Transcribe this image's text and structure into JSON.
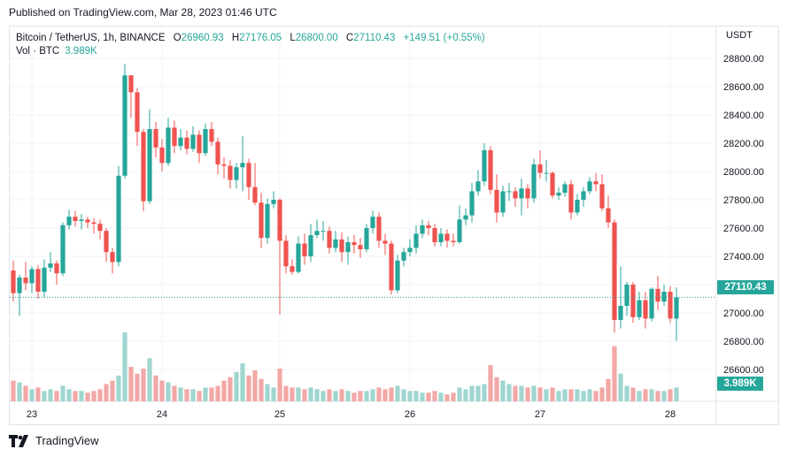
{
  "header": {
    "published": "Published on TradingView.com, Mar 28, 2023 01:46 UTC"
  },
  "legend": {
    "symbol": "Bitcoin / TetherUS, 1h, BINANCE",
    "open_label": "O",
    "open": "26960.93",
    "high_label": "H",
    "high": "27176.05",
    "low_label": "L",
    "low": "26800.00",
    "close_label": "C",
    "close": "27110.43",
    "change": "+149.51 (+0.55%)",
    "volume_label": "Vol · BTC",
    "volume": "3.989K"
  },
  "axis": {
    "currency": "USDT",
    "last_price_tag": "27110.43",
    "volume_tag": "3.989K"
  },
  "footer": {
    "brand": "TradingView"
  },
  "colors": {
    "up": "#26a69a",
    "down": "#ef5350",
    "vol_up": "#9fd6cf",
    "vol_down": "#f2a8a6",
    "grid": "#f0f3fa",
    "text": "#131722"
  },
  "chart_data": {
    "type": "candlestick",
    "title": "Bitcoin / TetherUS, 1h, BINANCE",
    "ylim": [
      26400,
      28900
    ],
    "y_ticks": [
      26600,
      26800,
      27000,
      27200,
      27400,
      27600,
      27800,
      28000,
      28200,
      28400,
      28600,
      28800
    ],
    "y_tick_labels": [
      "26600.00",
      "26800.00",
      "27000.00",
      "27200.00",
      "27400.00",
      "27600.00",
      "27800.00",
      "28000.00",
      "28200.00",
      "28400.00",
      "28600.00",
      "28800.00"
    ],
    "x_ticks": [
      {
        "label": "23",
        "index": 3
      },
      {
        "label": "24",
        "index": 24
      },
      {
        "label": "25",
        "index": 43
      },
      {
        "label": "26",
        "index": 64
      },
      {
        "label": "27",
        "index": 85
      },
      {
        "label": "28",
        "index": 106
      }
    ],
    "last_price": 27110.43,
    "grid": true,
    "candles": [
      [
        27300,
        27140,
        27370,
        27080,
        1.2
      ],
      [
        27140,
        27250,
        27270,
        26980,
        1.1
      ],
      [
        27250,
        27210,
        27360,
        27160,
        0.9
      ],
      [
        27210,
        27310,
        27330,
        27140,
        0.7
      ],
      [
        27310,
        27150,
        27340,
        27100,
        0.8
      ],
      [
        27150,
        27320,
        27380,
        27110,
        0.6
      ],
      [
        27320,
        27350,
        27430,
        27290,
        0.7
      ],
      [
        27350,
        27280,
        27370,
        27200,
        0.6
      ],
      [
        27280,
        27620,
        27640,
        27260,
        0.9
      ],
      [
        27620,
        27680,
        27730,
        27590,
        0.7
      ],
      [
        27680,
        27650,
        27720,
        27610,
        0.6
      ],
      [
        27650,
        27660,
        27700,
        27590,
        0.6
      ],
      [
        27660,
        27640,
        27680,
        27600,
        0.5
      ],
      [
        27640,
        27630,
        27670,
        27560,
        0.6
      ],
      [
        27630,
        27580,
        27660,
        27520,
        0.7
      ],
      [
        27580,
        27430,
        27600,
        27360,
        1.0
      ],
      [
        27430,
        27360,
        27460,
        27280,
        1.2
      ],
      [
        27360,
        27970,
        28040,
        27330,
        1.5
      ],
      [
        27970,
        28680,
        28760,
        27950,
        4.0
      ],
      [
        28680,
        28560,
        28680,
        28380,
        2.0
      ],
      [
        28560,
        28280,
        28590,
        28180,
        1.6
      ],
      [
        28280,
        27790,
        28300,
        27720,
        1.9
      ],
      [
        27790,
        28300,
        28440,
        27770,
        2.5
      ],
      [
        28300,
        28170,
        28350,
        28100,
        1.5
      ],
      [
        28170,
        28060,
        28230,
        28000,
        1.2
      ],
      [
        28060,
        28310,
        28380,
        28040,
        1.1
      ],
      [
        28310,
        28180,
        28360,
        28130,
        0.9
      ],
      [
        28180,
        28240,
        28300,
        28150,
        0.8
      ],
      [
        28240,
        28160,
        28290,
        28120,
        0.7
      ],
      [
        28160,
        28260,
        28320,
        28140,
        0.7
      ],
      [
        28260,
        28130,
        28290,
        28060,
        0.6
      ],
      [
        28130,
        28300,
        28340,
        28110,
        0.8
      ],
      [
        28300,
        28210,
        28350,
        28180,
        0.8
      ],
      [
        28210,
        28050,
        28240,
        27980,
        0.9
      ],
      [
        28050,
        28040,
        28100,
        27950,
        1.2
      ],
      [
        28040,
        27940,
        28080,
        27880,
        1.4
      ],
      [
        27940,
        28030,
        28060,
        27880,
        1.7
      ],
      [
        28030,
        28060,
        28250,
        27860,
        2.2
      ],
      [
        28060,
        27890,
        28090,
        27800,
        1.5
      ],
      [
        27890,
        27780,
        28060,
        27760,
        1.8
      ],
      [
        27780,
        27530,
        27850,
        27460,
        1.3
      ],
      [
        27530,
        27770,
        27810,
        27490,
        1.0
      ],
      [
        27770,
        27800,
        27860,
        27740,
        0.8
      ],
      [
        27800,
        27510,
        27810,
        26990,
        1.9
      ],
      [
        27510,
        27330,
        27550,
        27280,
        0.9
      ],
      [
        27330,
        27290,
        27380,
        27270,
        0.8
      ],
      [
        27290,
        27490,
        27540,
        27280,
        0.8
      ],
      [
        27490,
        27400,
        27560,
        27340,
        0.7
      ],
      [
        27400,
        27550,
        27630,
        27360,
        0.8
      ],
      [
        27550,
        27580,
        27660,
        27530,
        0.7
      ],
      [
        27580,
        27580,
        27650,
        27510,
        0.6
      ],
      [
        27580,
        27460,
        27610,
        27420,
        0.7
      ],
      [
        27460,
        27520,
        27580,
        27430,
        0.6
      ],
      [
        27520,
        27430,
        27570,
        27360,
        0.7
      ],
      [
        27430,
        27500,
        27540,
        27340,
        0.6
      ],
      [
        27500,
        27480,
        27550,
        27420,
        0.5
      ],
      [
        27480,
        27450,
        27530,
        27390,
        0.6
      ],
      [
        27450,
        27600,
        27630,
        27430,
        0.6
      ],
      [
        27600,
        27680,
        27720,
        27560,
        0.7
      ],
      [
        27680,
        27510,
        27710,
        27460,
        0.8
      ],
      [
        27510,
        27490,
        27560,
        27410,
        0.7
      ],
      [
        27490,
        27160,
        27510,
        27130,
        0.8
      ],
      [
        27160,
        27370,
        27410,
        27140,
        0.9
      ],
      [
        27370,
        27430,
        27460,
        27330,
        0.7
      ],
      [
        27430,
        27460,
        27520,
        27400,
        0.6
      ],
      [
        27460,
        27560,
        27620,
        27420,
        0.6
      ],
      [
        27560,
        27620,
        27660,
        27530,
        0.5
      ],
      [
        27620,
        27600,
        27650,
        27550,
        0.5
      ],
      [
        27600,
        27500,
        27630,
        27470,
        0.6
      ],
      [
        27500,
        27560,
        27600,
        27470,
        0.5
      ],
      [
        27560,
        27510,
        27590,
        27460,
        0.4
      ],
      [
        27510,
        27500,
        27560,
        27470,
        0.5
      ],
      [
        27500,
        27660,
        27760,
        27490,
        0.8
      ],
      [
        27660,
        27690,
        27740,
        27620,
        0.7
      ],
      [
        27690,
        27860,
        27920,
        27640,
        0.9
      ],
      [
        27860,
        27930,
        28010,
        27830,
        0.9
      ],
      [
        27930,
        28150,
        28200,
        27900,
        1.0
      ],
      [
        28150,
        27870,
        28180,
        27840,
        2.1
      ],
      [
        27870,
        27710,
        27980,
        27640,
        1.4
      ],
      [
        27710,
        27860,
        27900,
        27680,
        1.2
      ],
      [
        27860,
        27860,
        27920,
        27790,
        1.0
      ],
      [
        27860,
        27810,
        27890,
        27750,
        0.9
      ],
      [
        27810,
        27880,
        27950,
        27690,
        0.9
      ],
      [
        27880,
        27810,
        27910,
        27740,
        0.8
      ],
      [
        27810,
        28050,
        28090,
        27780,
        0.9
      ],
      [
        28050,
        27990,
        28150,
        27950,
        0.8
      ],
      [
        27990,
        27990,
        28080,
        27930,
        0.7
      ],
      [
        27990,
        27830,
        28000,
        27810,
        0.8
      ],
      [
        27830,
        27850,
        27890,
        27800,
        0.6
      ],
      [
        27850,
        27910,
        27930,
        27820,
        0.7
      ],
      [
        27910,
        27710,
        27940,
        27660,
        0.7
      ],
      [
        27710,
        27800,
        27840,
        27690,
        0.7
      ],
      [
        27800,
        27860,
        27890,
        27750,
        0.6
      ],
      [
        27860,
        27930,
        27960,
        27840,
        0.7
      ],
      [
        27930,
        27910,
        27990,
        27860,
        0.6
      ],
      [
        27910,
        27740,
        27980,
        27720,
        0.8
      ],
      [
        27740,
        27640,
        27830,
        27600,
        1.3
      ],
      [
        27640,
        26950,
        27660,
        26860,
        3.2
      ],
      [
        26950,
        27050,
        27330,
        26890,
        1.6
      ],
      [
        27050,
        27200,
        27220,
        26980,
        0.9
      ],
      [
        27200,
        26970,
        27220,
        26930,
        0.8
      ],
      [
        26970,
        27090,
        27150,
        26950,
        0.6
      ],
      [
        27090,
        26960,
        27150,
        26890,
        0.7
      ],
      [
        26960,
        27170,
        27180,
        26940,
        0.7
      ],
      [
        27170,
        27080,
        27260,
        27020,
        0.6
      ],
      [
        27080,
        27150,
        27200,
        27050,
        0.6
      ],
      [
        27150,
        26960,
        27190,
        26930,
        0.7
      ],
      [
        26960,
        27110,
        27180,
        26800,
        0.8
      ]
    ]
  }
}
